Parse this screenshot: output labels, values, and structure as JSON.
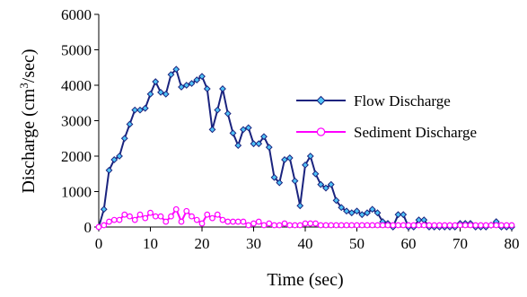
{
  "chart_data": {
    "type": "line",
    "xlabel": "Time (sec)",
    "ylabel_main": "Discharge (cm",
    "ylabel_sup": "3",
    "ylabel_tail": "/sec)",
    "xlim": [
      0,
      80
    ],
    "ylim": [
      0,
      6000
    ],
    "xticks": [
      "0",
      "10",
      "20",
      "30",
      "40",
      "50",
      "60",
      "70",
      "80"
    ],
    "yticks": [
      "0",
      "1000",
      "2000",
      "3000",
      "4000",
      "5000",
      "6000"
    ],
    "grid": false,
    "legend_position": "right",
    "series": [
      {
        "name": "Flow Discharge",
        "color": "#1a237e",
        "marker": "diamond",
        "marker_fill": "#4fc3f7",
        "x": [
          0,
          1,
          2,
          3,
          4,
          5,
          6,
          7,
          8,
          9,
          10,
          11,
          12,
          13,
          14,
          15,
          16,
          17,
          18,
          19,
          20,
          21,
          22,
          23,
          24,
          25,
          26,
          27,
          28,
          29,
          30,
          31,
          32,
          33,
          34,
          35,
          36,
          37,
          38,
          39,
          40,
          41,
          42,
          43,
          44,
          45,
          46,
          47,
          48,
          49,
          50,
          51,
          52,
          53,
          54,
          55,
          56,
          57,
          58,
          59,
          60,
          61,
          62,
          63,
          64,
          65,
          66,
          67,
          68,
          69,
          70,
          71,
          72,
          73,
          74,
          75,
          76,
          77,
          78,
          79,
          80
        ],
        "y": [
          0,
          500,
          1600,
          1900,
          2000,
          2500,
          2900,
          3300,
          3300,
          3350,
          3750,
          4100,
          3800,
          3750,
          4300,
          4450,
          3950,
          4000,
          4050,
          4150,
          4250,
          3900,
          2750,
          3300,
          3900,
          3200,
          2650,
          2300,
          2750,
          2800,
          2350,
          2350,
          2550,
          2250,
          1400,
          1250,
          1900,
          1950,
          1300,
          600,
          1750,
          2000,
          1500,
          1200,
          1100,
          1200,
          750,
          550,
          450,
          400,
          450,
          350,
          400,
          500,
          400,
          150,
          100,
          0,
          350,
          350,
          0,
          0,
          200,
          200,
          0,
          0,
          0,
          0,
          0,
          0,
          100,
          100,
          100,
          0,
          0,
          0,
          50,
          150,
          0,
          0,
          0
        ]
      },
      {
        "name": "Sediment Discharge",
        "color": "#ff00ff",
        "marker": "circle",
        "marker_fill": "#ffffff",
        "x": [
          0,
          1,
          2,
          3,
          4,
          5,
          6,
          7,
          8,
          9,
          10,
          11,
          12,
          13,
          14,
          15,
          16,
          17,
          18,
          19,
          20,
          21,
          22,
          23,
          24,
          25,
          26,
          27,
          28,
          29,
          30,
          31,
          32,
          33,
          34,
          35,
          36,
          37,
          38,
          39,
          40,
          41,
          42,
          43,
          44,
          45,
          46,
          47,
          48,
          49,
          50,
          51,
          52,
          53,
          54,
          55,
          56,
          57,
          58,
          59,
          60,
          61,
          62,
          63,
          64,
          65,
          66,
          67,
          68,
          69,
          70,
          71,
          72,
          73,
          74,
          75,
          76,
          77,
          78,
          79,
          80
        ],
        "y": [
          0,
          50,
          150,
          200,
          200,
          350,
          300,
          200,
          350,
          250,
          400,
          300,
          300,
          150,
          300,
          500,
          150,
          450,
          300,
          200,
          100,
          350,
          250,
          350,
          200,
          150,
          150,
          150,
          150,
          50,
          100,
          150,
          50,
          100,
          50,
          50,
          100,
          50,
          50,
          50,
          100,
          100,
          100,
          50,
          50,
          50,
          50,
          50,
          50,
          50,
          50,
          50,
          50,
          50,
          50,
          50,
          50,
          50,
          50,
          50,
          50,
          50,
          50,
          50,
          50,
          50,
          50,
          50,
          50,
          50,
          50,
          50,
          50,
          50,
          50,
          50,
          50,
          50,
          50,
          50,
          50
        ]
      }
    ]
  }
}
